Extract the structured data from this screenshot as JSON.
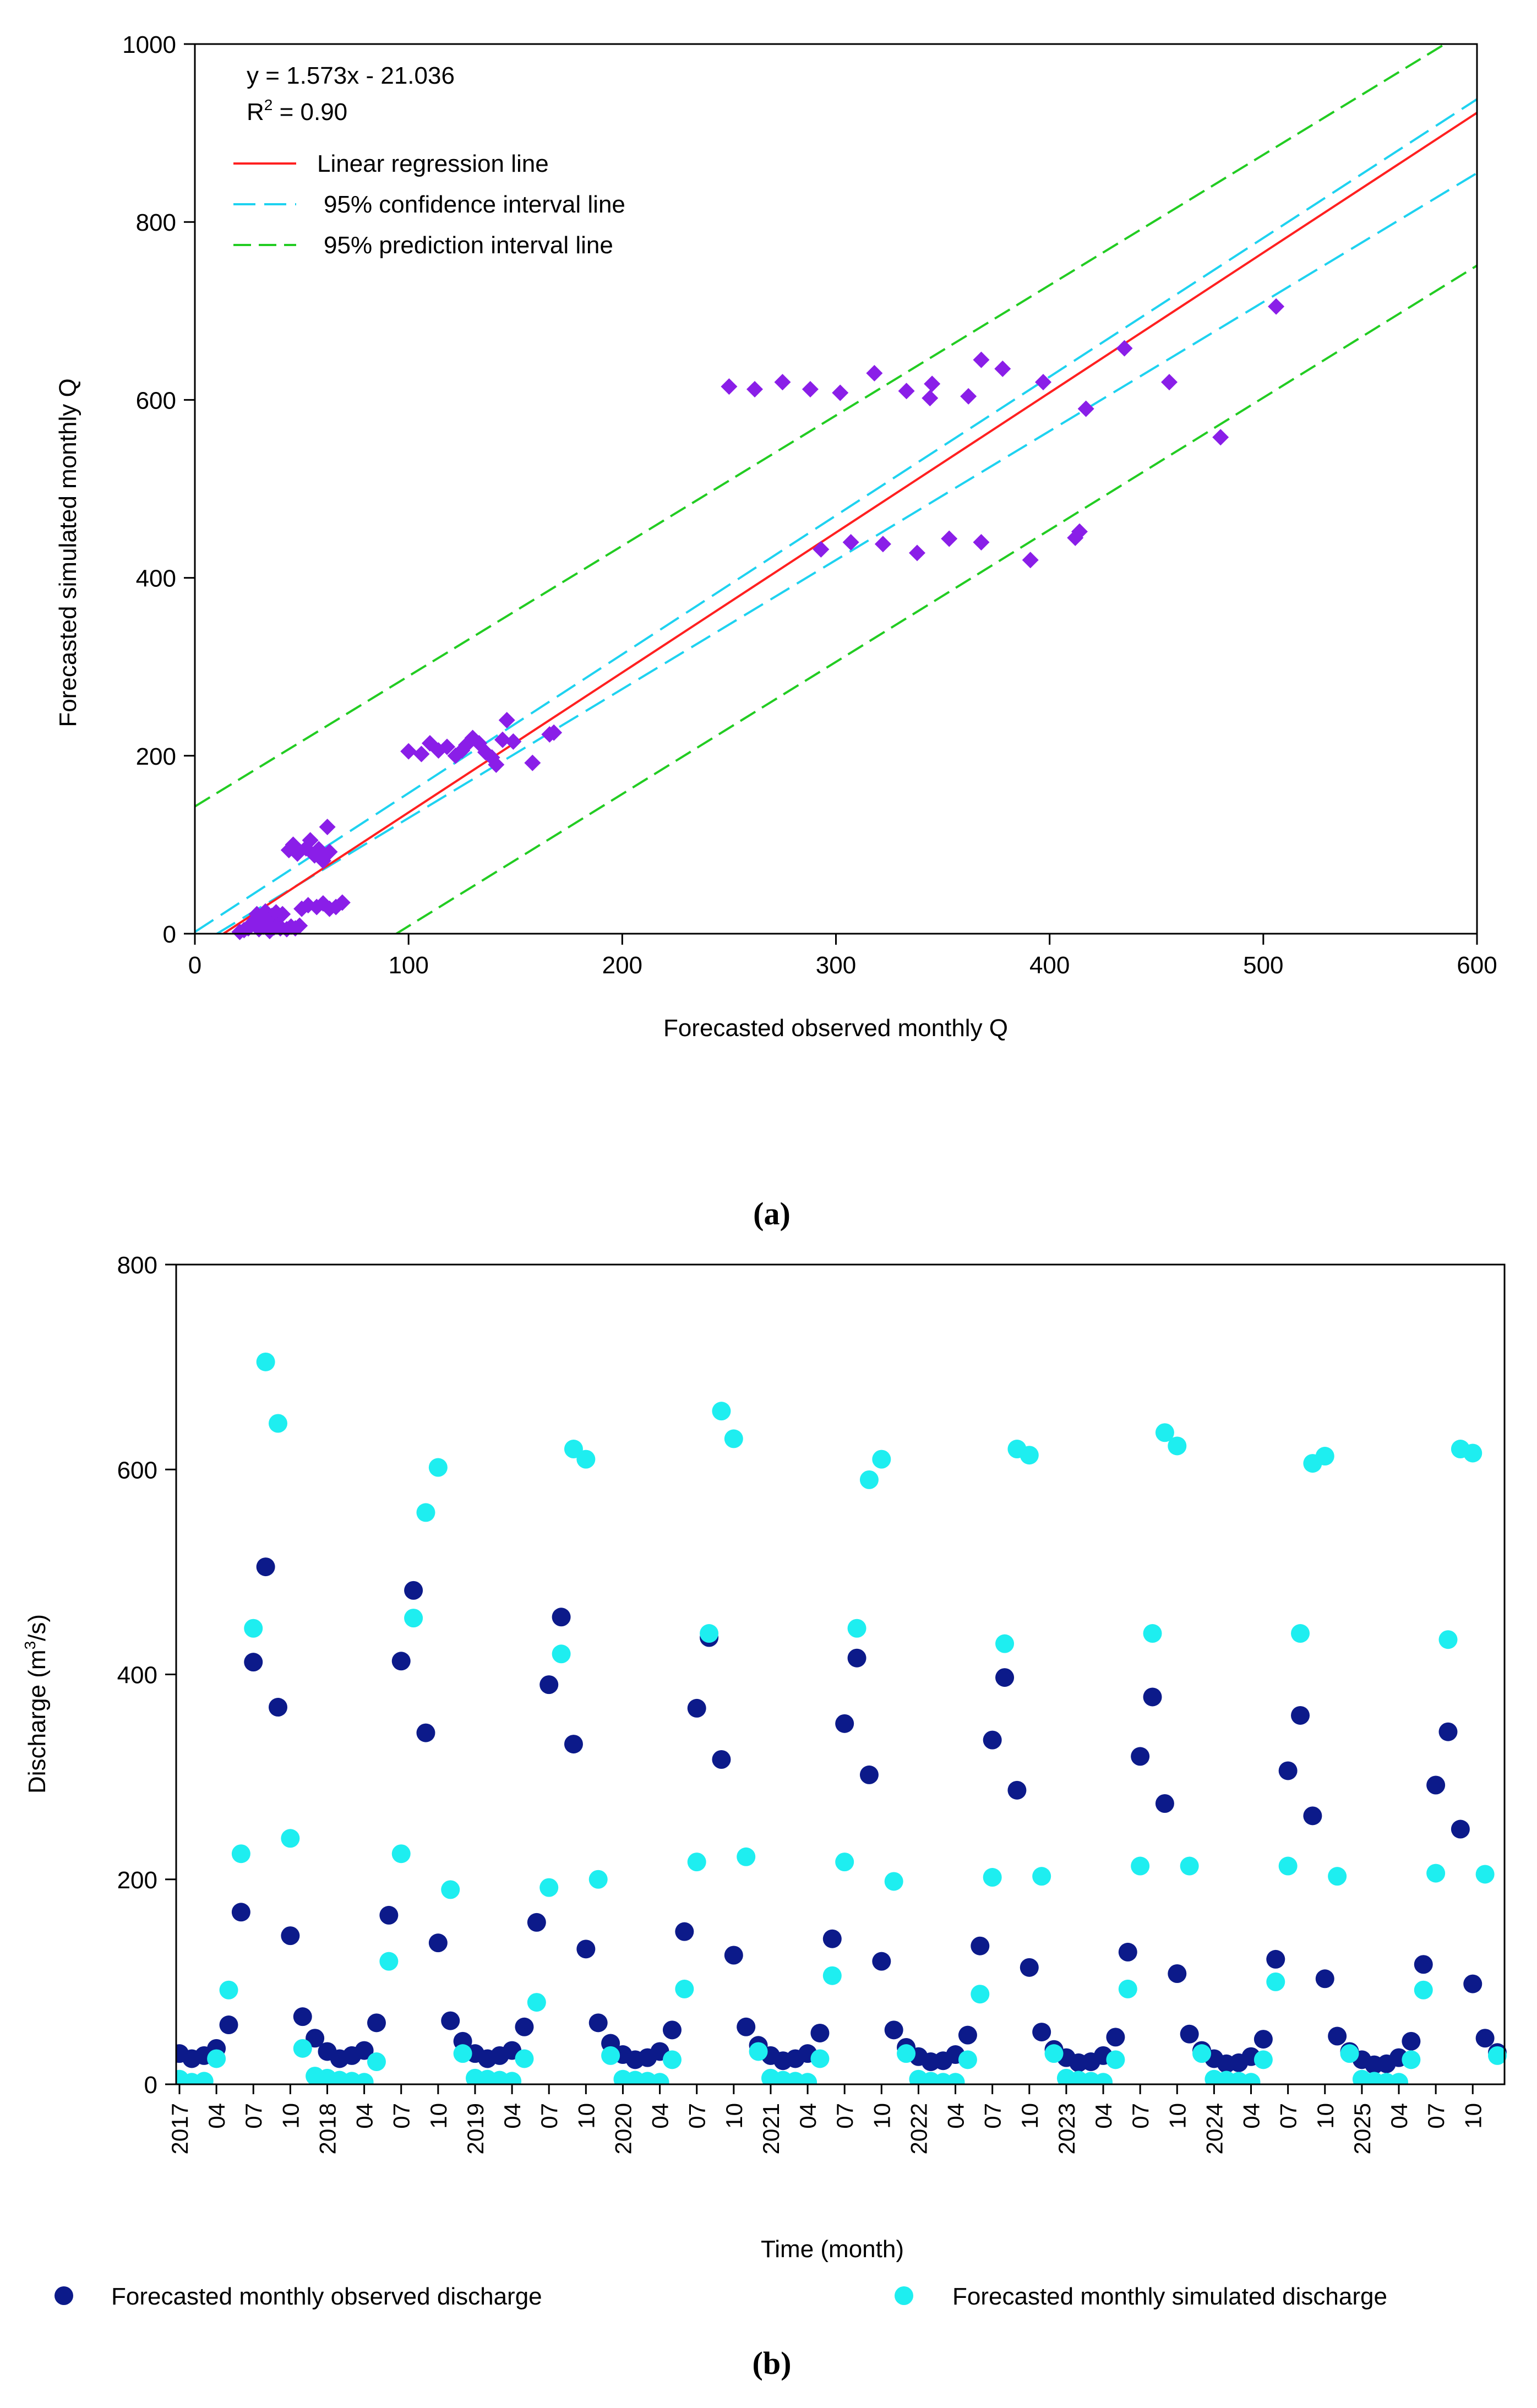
{
  "panel_labels": {
    "a": "(a)",
    "b": "(b)"
  },
  "colors": {
    "scatter": "#8a1ee8",
    "regression": "#ff2020",
    "confidence": "#1ed2f0",
    "prediction": "#22cc22",
    "observed": "#0c1a8a",
    "simulated": "#1eeef0"
  },
  "chart_data": [
    {
      "type": "scatter",
      "xlabel": "Forecasted observed monthly Q",
      "ylabel": "Forecasted simulated monthly Q",
      "xlim": [
        0,
        600
      ],
      "ylim": [
        0,
        1000
      ],
      "xticks": [
        0,
        100,
        200,
        300,
        400,
        500,
        600
      ],
      "yticks": [
        0,
        200,
        400,
        600,
        800,
        1000
      ],
      "grid": false,
      "equation": "y = 1.573x - 21.036",
      "r2_label": "R",
      "r2_sup": "2",
      "r2_value": " = 0.90",
      "regression": {
        "slope": 1.573,
        "intercept": -21.036,
        "x_range": [
          13.5,
          600
        ]
      },
      "confidence_upper": {
        "slope": 1.56,
        "intercept": 2,
        "x_range": [
          0,
          600
        ]
      },
      "confidence_lower": {
        "slope": 1.45,
        "intercept": -15,
        "x_range": [
          10,
          600
        ]
      },
      "prediction_upper": {
        "slope": 1.465,
        "intercept": 143,
        "x_range": [
          0,
          600
        ]
      },
      "prediction_lower": {
        "slope": 1.485,
        "intercept": -140,
        "x_range": [
          94,
          600
        ]
      },
      "legend": [
        {
          "label": "Linear regression line",
          "series": "regression"
        },
        {
          "label": "95% confidence interval line",
          "series": "confidence"
        },
        {
          "label": "95% prediction interval line",
          "series": "prediction"
        }
      ],
      "legend_position": "top-left",
      "points": [
        [
          21,
          2
        ],
        [
          23,
          4
        ],
        [
          25,
          6
        ],
        [
          26,
          10
        ],
        [
          28,
          15
        ],
        [
          29,
          22
        ],
        [
          30,
          5
        ],
        [
          31,
          18
        ],
        [
          32,
          8
        ],
        [
          33,
          25
        ],
        [
          34,
          12
        ],
        [
          35,
          3
        ],
        [
          36,
          20
        ],
        [
          37,
          7
        ],
        [
          38,
          24
        ],
        [
          39,
          10
        ],
        [
          40,
          6
        ],
        [
          41,
          22
        ],
        [
          43,
          5
        ],
        [
          45,
          8
        ],
        [
          47,
          6
        ],
        [
          49,
          9
        ],
        [
          44,
          94
        ],
        [
          46,
          100
        ],
        [
          48,
          90
        ],
        [
          52,
          96
        ],
        [
          54,
          105
        ],
        [
          56,
          88
        ],
        [
          58,
          95
        ],
        [
          60,
          82
        ],
        [
          62,
          120
        ],
        [
          63,
          92
        ],
        [
          50,
          28
        ],
        [
          53,
          32
        ],
        [
          57,
          30
        ],
        [
          60,
          34
        ],
        [
          63,
          28
        ],
        [
          66,
          30
        ],
        [
          69,
          35
        ],
        [
          100,
          205
        ],
        [
          106,
          202
        ],
        [
          110,
          214
        ],
        [
          114,
          206
        ],
        [
          118,
          210
        ],
        [
          122,
          200
        ],
        [
          125,
          206
        ],
        [
          127,
          212
        ],
        [
          130,
          220
        ],
        [
          133,
          214
        ],
        [
          136,
          204
        ],
        [
          139,
          198
        ],
        [
          141,
          190
        ],
        [
          144,
          218
        ],
        [
          146,
          240
        ],
        [
          149,
          216
        ],
        [
          158,
          192
        ],
        [
          166,
          224
        ],
        [
          168,
          226
        ],
        [
          250,
          615
        ],
        [
          262,
          612
        ],
        [
          275,
          620
        ],
        [
          288,
          612
        ],
        [
          302,
          608
        ],
        [
          318,
          630
        ],
        [
          333,
          610
        ],
        [
          344,
          602
        ],
        [
          345,
          618
        ],
        [
          362,
          604
        ],
        [
          368,
          645
        ],
        [
          378,
          635
        ],
        [
          397,
          620
        ],
        [
          417,
          590
        ],
        [
          435,
          658
        ],
        [
          456,
          620
        ],
        [
          480,
          558
        ],
        [
          506,
          705
        ],
        [
          293,
          432
        ],
        [
          307,
          440
        ],
        [
          322,
          438
        ],
        [
          338,
          428
        ],
        [
          353,
          444
        ],
        [
          368,
          440
        ],
        [
          391,
          420
        ],
        [
          412,
          445
        ],
        [
          414,
          452
        ]
      ]
    },
    {
      "type": "scatter",
      "xlabel": "Time (month)",
      "ylabel": "Discharge (m",
      "ylabel_sup": "3",
      "ylabel_tail": "/s)",
      "ylim": [
        0,
        800
      ],
      "yticks": [
        0,
        200,
        400,
        600,
        800
      ],
      "grid": false,
      "legend_position": "bottom",
      "x_tick_labels": [
        "2017",
        "04",
        "07",
        "10",
        "2018",
        "04",
        "07",
        "10",
        "2019",
        "04",
        "07",
        "10",
        "2020",
        "04",
        "07",
        "10",
        "2021",
        "04",
        "07",
        "10",
        "2022",
        "04",
        "07",
        "10",
        "2023",
        "04",
        "07",
        "10",
        "2024",
        "04",
        "07",
        "10",
        "2025",
        "04",
        "07",
        "10"
      ],
      "series": [
        {
          "name": "Forecasted monthly observed discharge",
          "values": [
            30,
            25,
            28,
            35,
            58,
            168,
            412,
            505,
            368,
            145,
            66,
            45,
            32,
            25,
            28,
            33,
            60,
            165,
            413,
            482,
            343,
            138,
            62,
            42,
            30,
            25,
            28,
            33,
            56,
            158,
            390,
            456,
            332,
            132,
            60,
            40,
            29,
            24,
            26,
            32,
            53,
            149,
            367,
            436,
            317,
            126,
            56,
            38,
            28,
            23,
            25,
            30,
            50,
            142,
            352,
            416,
            302,
            120,
            53,
            36,
            27,
            22,
            23,
            29,
            48,
            135,
            336,
            397,
            287,
            114,
            51,
            34,
            26,
            21,
            22,
            28,
            46,
            129,
            320,
            378,
            274,
            108,
            49,
            33,
            25,
            20,
            21,
            27,
            44,
            122,
            306,
            360,
            262,
            103,
            47,
            32,
            24,
            19,
            20,
            26,
            42,
            117,
            292,
            344,
            249,
            98,
            45,
            31
          ]
        },
        {
          "name": "Forecasted monthly simulated discharge",
          "values": [
            5,
            2,
            3,
            25,
            92,
            225,
            445,
            705,
            645,
            240,
            35,
            8,
            6,
            4,
            3,
            2,
            22,
            120,
            225,
            455,
            558,
            602,
            190,
            30,
            6,
            5,
            4,
            3,
            25,
            80,
            192,
            420,
            620,
            610,
            200,
            28,
            5,
            4,
            3,
            2,
            24,
            93,
            217,
            440,
            657,
            630,
            222,
            32,
            6,
            4,
            3,
            2,
            25,
            106,
            217,
            445,
            590,
            610,
            198,
            30,
            5,
            3,
            2,
            2,
            24,
            88,
            202,
            430,
            620,
            614,
            203,
            30,
            6,
            4,
            3,
            2,
            24,
            93,
            213,
            440,
            636,
            623,
            213,
            30,
            5,
            4,
            3,
            2,
            24,
            100,
            213,
            440,
            606,
            613,
            203,
            30,
            5,
            3,
            2,
            2,
            24,
            92,
            206,
            434,
            620,
            616,
            205,
            28
          ]
        }
      ]
    }
  ]
}
